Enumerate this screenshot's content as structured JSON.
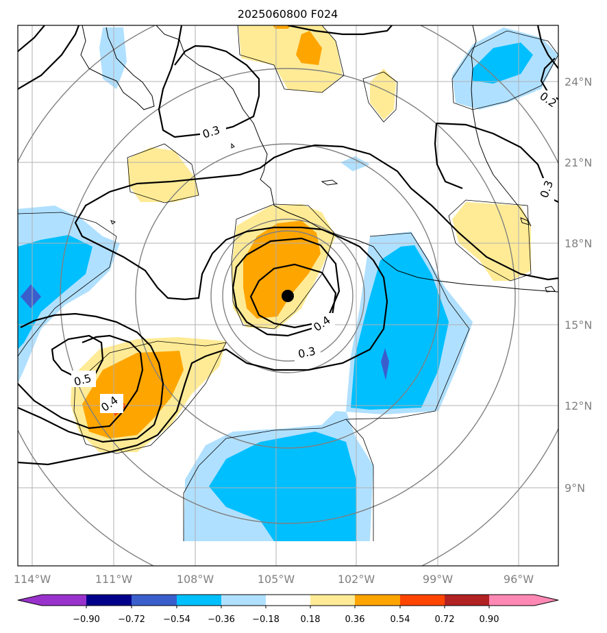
{
  "title": "2025060800 F024",
  "lat_labels": [
    "24°N",
    "21°N",
    "18°N",
    "15°N",
    "12°N",
    "9°N"
  ],
  "lon_labels": [
    "114°W",
    "111°W",
    "108°W",
    "105°W",
    "102°W",
    "99°W",
    "96°W"
  ],
  "colorbar": {
    "ticks": [
      "−0.90",
      "−0.72",
      "−0.54",
      "−0.36",
      "−0.18",
      "0.18",
      "0.36",
      "0.54",
      "0.72",
      "0.90"
    ],
    "colors": [
      "#9932cc",
      "#00008b",
      "#3a5fcd",
      "#00bfff",
      "#b0e0ff",
      "#ffffff",
      "#ffeb96",
      "#ffa500",
      "#ff4500",
      "#b22222",
      "#ff88b4"
    ]
  },
  "contour_labels": [
    "0.3",
    "0.2",
    "0.3",
    "0.4",
    "0.3",
    "0.5",
    "0.4"
  ],
  "storm_center": {
    "lat": 16.1,
    "lon": -104.6
  }
}
